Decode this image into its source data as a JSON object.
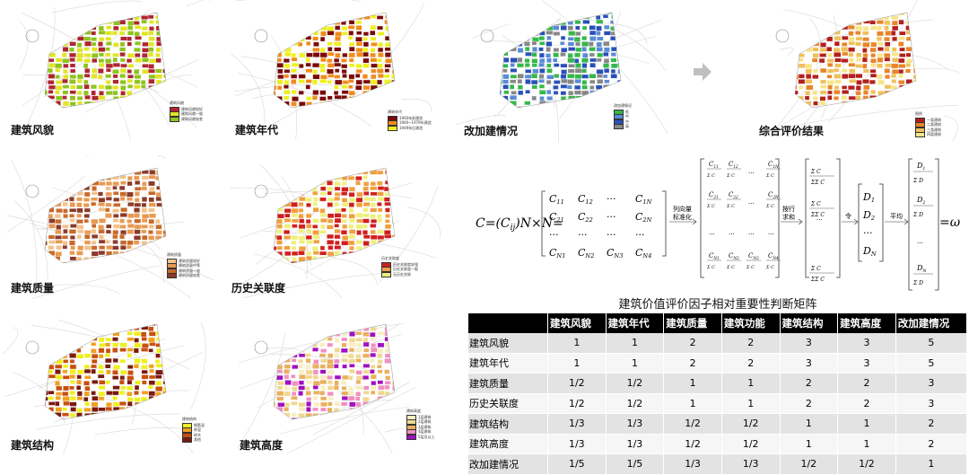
{
  "panels": [
    {
      "title": "建筑风貌",
      "legend_title": "建筑风貌",
      "legend": [
        "建筑风貌较好",
        "建筑风貌一般",
        "建筑风貌较差"
      ],
      "colors": [
        "#b02431",
        "#e1e526",
        "#8fc31f"
      ]
    },
    {
      "title": "建筑年代",
      "legend_title": "建筑年代",
      "legend": [
        "1960年前建造",
        "1960~1979年建造",
        "1949年后建造"
      ],
      "colors": [
        "#7a0a0a",
        "#f08c1e",
        "#eef01e"
      ]
    },
    {
      "title": "改加建情况",
      "legend_title": "改加建情况",
      "legend": [
        "低",
        "中",
        "中",
        "高"
      ],
      "colors": [
        "#35b84a",
        "#5b8bd6",
        "#2a50b8",
        "#888888"
      ]
    },
    {
      "title": "综合评价结果",
      "legend_title": "图例",
      "legend": [
        "一类建筑",
        "二类建筑",
        "三类建筑",
        "四类建筑"
      ],
      "colors": [
        "#b2201d",
        "#e8852a",
        "#f0c15a",
        "#f7e58a"
      ]
    },
    {
      "title": "建筑质量",
      "legend_title": "建筑质量",
      "legend": [
        "建筑质量较好",
        "建筑质量中等",
        "建筑质量一般",
        "建筑质量较差"
      ],
      "colors": [
        "#f2c38e",
        "#e89a52",
        "#c86a2a",
        "#8b3a2a"
      ]
    },
    {
      "title": "历史关联度",
      "legend_title": "历史关联度",
      "legend": [
        "历史关联度较强",
        "历史关联度一般",
        "无历史关联"
      ],
      "colors": [
        "#d01f1f",
        "#f0a040",
        "#eef07a"
      ]
    },
    {
      "title": "建筑结构",
      "legend_title": "建筑结构",
      "legend": [
        "钢筋混",
        "砖混",
        "砖木",
        "其他"
      ],
      "colors": [
        "#eef01e",
        "#f0a020",
        "#c84f10",
        "#7a1a10"
      ]
    },
    {
      "title": "建筑高度",
      "legend_title": "建筑高度",
      "legend": [
        "1层建筑",
        "2层建筑",
        "3层建筑",
        "4层建筑",
        "5层及以上"
      ],
      "colors": [
        "#f8eec0",
        "#f0d890",
        "#e8b060",
        "#f090c0",
        "#a010c0"
      ]
    }
  ],
  "formula": {
    "lhs": "C=(C",
    "lhs_sub": "ij",
    "lhs_tail": ")N×N=",
    "matrix": [
      [
        "C11",
        "C12",
        "···",
        "C1N"
      ],
      [
        "C21",
        "C22",
        "···",
        "C2N"
      ],
      [
        "···",
        "···",
        "···",
        "···"
      ],
      [
        "CN1",
        "CN2",
        "CN3",
        "CN4"
      ]
    ],
    "step1": "列向量\n标准化",
    "step2": "按行\n求和",
    "step3": "令",
    "step4": "平均",
    "d_vector": [
      "D1",
      "D2",
      "···",
      "DN"
    ],
    "result": "=ω"
  },
  "table": {
    "title": "建筑价值评价因子相对重要性判断矩阵",
    "headers": [
      "",
      "建筑风貌",
      "建筑年代",
      "建筑质量",
      "建筑功能",
      "建筑结构",
      "建筑高度",
      "改加建情况"
    ],
    "rows": [
      [
        "建筑风貌",
        "1",
        "1",
        "2",
        "2",
        "3",
        "3",
        "5"
      ],
      [
        "建筑年代",
        "1",
        "1",
        "2",
        "2",
        "3",
        "3",
        "5"
      ],
      [
        "建筑质量",
        "1/2",
        "1/2",
        "1",
        "1",
        "2",
        "2",
        "3"
      ],
      [
        "历史关联度",
        "1/2",
        "1/2",
        "1",
        "1",
        "2",
        "2",
        "3"
      ],
      [
        "建筑结构",
        "1/3",
        "1/3",
        "1/2",
        "1/2",
        "1",
        "1",
        "2"
      ],
      [
        "建筑高度",
        "1/3",
        "1/3",
        "1/2",
        "1/2",
        "1",
        "1",
        "2"
      ],
      [
        "改加建情况",
        "1/5",
        "1/5",
        "1/3",
        "1/3",
        "1/2",
        "1/2",
        "1"
      ]
    ]
  }
}
